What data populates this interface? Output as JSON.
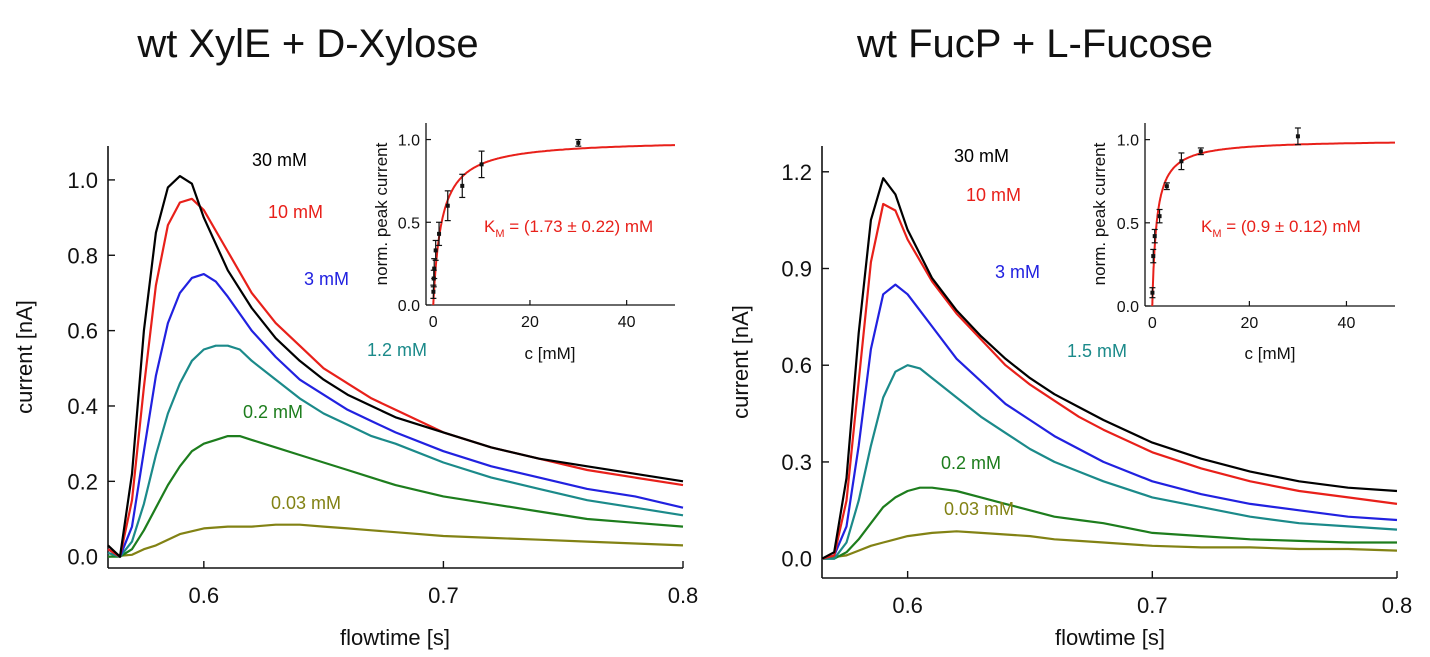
{
  "chart_data": [
    {
      "type": "line",
      "title": "wt XylE + D-Xylose",
      "xlabel": "flowtime [s]",
      "ylabel": "current [nA]",
      "xlim": [
        0.56,
        0.8
      ],
      "ylim": [
        -0.03,
        1.09
      ],
      "xticks": [
        "0.6",
        "0.7",
        "0.8"
      ],
      "yticks": [
        "0.0",
        "0.2",
        "0.4",
        "0.6",
        "0.8",
        "1.0"
      ],
      "series": [
        {
          "name": "30 mM",
          "color": "#000000",
          "x": [
            0.56,
            0.565,
            0.57,
            0.575,
            0.58,
            0.585,
            0.59,
            0.595,
            0.6,
            0.61,
            0.62,
            0.63,
            0.64,
            0.65,
            0.66,
            0.67,
            0.68,
            0.7,
            0.72,
            0.74,
            0.76,
            0.78,
            0.8
          ],
          "y": [
            0.03,
            0.0,
            0.22,
            0.6,
            0.86,
            0.98,
            1.01,
            0.99,
            0.9,
            0.76,
            0.66,
            0.58,
            0.52,
            0.47,
            0.43,
            0.4,
            0.37,
            0.33,
            0.29,
            0.26,
            0.24,
            0.22,
            0.2
          ]
        },
        {
          "name": "10 mM",
          "color": "#e8201a",
          "x": [
            0.56,
            0.565,
            0.57,
            0.575,
            0.58,
            0.585,
            0.59,
            0.595,
            0.6,
            0.61,
            0.62,
            0.63,
            0.64,
            0.65,
            0.66,
            0.67,
            0.68,
            0.7,
            0.72,
            0.74,
            0.76,
            0.78,
            0.8
          ],
          "y": [
            0.02,
            0.0,
            0.15,
            0.45,
            0.72,
            0.88,
            0.94,
            0.95,
            0.92,
            0.81,
            0.7,
            0.62,
            0.56,
            0.5,
            0.46,
            0.42,
            0.39,
            0.33,
            0.29,
            0.26,
            0.23,
            0.21,
            0.19
          ]
        },
        {
          "name": "3 mM",
          "color": "#2121e0",
          "x": [
            0.56,
            0.565,
            0.57,
            0.575,
            0.58,
            0.585,
            0.59,
            0.595,
            0.6,
            0.605,
            0.61,
            0.62,
            0.63,
            0.64,
            0.65,
            0.66,
            0.67,
            0.68,
            0.7,
            0.72,
            0.74,
            0.76,
            0.78,
            0.8
          ],
          "y": [
            0.02,
            0.0,
            0.08,
            0.28,
            0.48,
            0.62,
            0.7,
            0.74,
            0.75,
            0.73,
            0.69,
            0.6,
            0.53,
            0.47,
            0.43,
            0.39,
            0.36,
            0.33,
            0.28,
            0.24,
            0.21,
            0.18,
            0.16,
            0.13
          ]
        },
        {
          "name": "1.2 mM",
          "color": "#1b8a8a",
          "x": [
            0.56,
            0.565,
            0.57,
            0.575,
            0.58,
            0.585,
            0.59,
            0.595,
            0.6,
            0.605,
            0.61,
            0.615,
            0.62,
            0.63,
            0.64,
            0.65,
            0.66,
            0.67,
            0.68,
            0.7,
            0.72,
            0.74,
            0.76,
            0.78,
            0.8
          ],
          "y": [
            0.01,
            0.0,
            0.04,
            0.14,
            0.27,
            0.38,
            0.46,
            0.52,
            0.55,
            0.56,
            0.56,
            0.55,
            0.52,
            0.47,
            0.42,
            0.38,
            0.35,
            0.32,
            0.3,
            0.25,
            0.21,
            0.18,
            0.15,
            0.13,
            0.11
          ]
        },
        {
          "name": "0.2 mM",
          "color": "#1d7d1d",
          "x": [
            0.56,
            0.565,
            0.57,
            0.575,
            0.58,
            0.585,
            0.59,
            0.595,
            0.6,
            0.605,
            0.61,
            0.615,
            0.62,
            0.63,
            0.64,
            0.65,
            0.66,
            0.67,
            0.68,
            0.7,
            0.72,
            0.74,
            0.76,
            0.78,
            0.8
          ],
          "y": [
            0.0,
            0.0,
            0.02,
            0.07,
            0.13,
            0.19,
            0.24,
            0.28,
            0.3,
            0.31,
            0.32,
            0.32,
            0.31,
            0.29,
            0.27,
            0.25,
            0.23,
            0.21,
            0.19,
            0.16,
            0.14,
            0.12,
            0.1,
            0.09,
            0.08
          ]
        },
        {
          "name": "0.03 mM",
          "color": "#828214",
          "x": [
            0.56,
            0.57,
            0.575,
            0.58,
            0.585,
            0.59,
            0.6,
            0.61,
            0.62,
            0.63,
            0.64,
            0.65,
            0.66,
            0.67,
            0.68,
            0.7,
            0.72,
            0.74,
            0.76,
            0.78,
            0.8
          ],
          "y": [
            0.0,
            0.005,
            0.02,
            0.03,
            0.045,
            0.06,
            0.075,
            0.08,
            0.08,
            0.085,
            0.085,
            0.08,
            0.075,
            0.07,
            0.065,
            0.055,
            0.05,
            0.045,
            0.04,
            0.035,
            0.03
          ]
        }
      ],
      "inset": {
        "xlabel": "c [mM]",
        "ylabel": "norm. peak current",
        "xlim": [
          -1.5,
          50
        ],
        "ylim": [
          0,
          1.1
        ],
        "xticks": [
          "0",
          "20",
          "40"
        ],
        "yticks": [
          "0.0",
          "0.5",
          "1.0"
        ],
        "points": {
          "x": [
            0.03,
            0.1,
            0.2,
            0.5,
            1.2,
            3,
            6,
            10,
            30
          ],
          "y": [
            0.08,
            0.16,
            0.22,
            0.33,
            0.43,
            0.6,
            0.72,
            0.85,
            0.98
          ],
          "err": [
            0.04,
            0.05,
            0.06,
            0.06,
            0.07,
            0.09,
            0.07,
            0.08,
            0.02
          ]
        },
        "fit": {
          "model": "michaelis-menten",
          "km": 1.73,
          "vmax": 1.0,
          "color": "#e8201a"
        },
        "annotation": "K_M = (1.73 ± 0.22) mM"
      }
    },
    {
      "type": "line",
      "title": "wt FucP + L-Fucose",
      "xlabel": "flowtime [s]",
      "ylabel": "current [nA]",
      "xlim": [
        0.565,
        0.8
      ],
      "ylim": [
        -0.06,
        1.28
      ],
      "xticks": [
        "0.6",
        "0.7",
        "0.8"
      ],
      "yticks": [
        "0.0",
        "0.3",
        "0.6",
        "0.9",
        "1.2"
      ],
      "series": [
        {
          "name": "30 mM",
          "color": "#000000",
          "x": [
            0.565,
            0.57,
            0.575,
            0.58,
            0.585,
            0.59,
            0.595,
            0.6,
            0.61,
            0.62,
            0.63,
            0.64,
            0.65,
            0.66,
            0.67,
            0.68,
            0.7,
            0.72,
            0.74,
            0.76,
            0.78,
            0.8
          ],
          "y": [
            0.0,
            0.02,
            0.25,
            0.7,
            1.05,
            1.18,
            1.13,
            1.02,
            0.87,
            0.77,
            0.69,
            0.62,
            0.56,
            0.51,
            0.47,
            0.43,
            0.36,
            0.31,
            0.27,
            0.24,
            0.22,
            0.21
          ]
        },
        {
          "name": "10 mM",
          "color": "#e8201a",
          "x": [
            0.565,
            0.57,
            0.575,
            0.58,
            0.585,
            0.59,
            0.595,
            0.6,
            0.61,
            0.62,
            0.63,
            0.64,
            0.65,
            0.66,
            0.67,
            0.68,
            0.7,
            0.72,
            0.74,
            0.76,
            0.78,
            0.8
          ],
          "y": [
            0.0,
            0.01,
            0.18,
            0.55,
            0.92,
            1.1,
            1.08,
            0.99,
            0.86,
            0.76,
            0.68,
            0.6,
            0.54,
            0.49,
            0.44,
            0.4,
            0.33,
            0.28,
            0.24,
            0.21,
            0.19,
            0.17
          ]
        },
        {
          "name": "3 mM",
          "color": "#2121e0",
          "x": [
            0.565,
            0.57,
            0.575,
            0.58,
            0.585,
            0.59,
            0.595,
            0.6,
            0.605,
            0.61,
            0.62,
            0.63,
            0.64,
            0.65,
            0.66,
            0.67,
            0.68,
            0.7,
            0.72,
            0.74,
            0.76,
            0.78,
            0.8
          ],
          "y": [
            0.0,
            0.01,
            0.1,
            0.35,
            0.65,
            0.82,
            0.85,
            0.82,
            0.77,
            0.72,
            0.62,
            0.55,
            0.48,
            0.43,
            0.38,
            0.34,
            0.3,
            0.24,
            0.2,
            0.17,
            0.15,
            0.13,
            0.12
          ]
        },
        {
          "name": "1.5 mM",
          "color": "#1b8a8a",
          "x": [
            0.565,
            0.57,
            0.575,
            0.58,
            0.585,
            0.59,
            0.595,
            0.6,
            0.605,
            0.61,
            0.62,
            0.63,
            0.64,
            0.65,
            0.66,
            0.67,
            0.68,
            0.7,
            0.72,
            0.74,
            0.76,
            0.78,
            0.8
          ],
          "y": [
            0.0,
            0.0,
            0.05,
            0.18,
            0.35,
            0.5,
            0.58,
            0.6,
            0.59,
            0.56,
            0.5,
            0.44,
            0.39,
            0.34,
            0.3,
            0.27,
            0.24,
            0.19,
            0.16,
            0.13,
            0.11,
            0.1,
            0.09
          ]
        },
        {
          "name": "0.2 mM",
          "color": "#1d7d1d",
          "x": [
            0.565,
            0.57,
            0.575,
            0.58,
            0.585,
            0.59,
            0.595,
            0.6,
            0.605,
            0.61,
            0.62,
            0.63,
            0.64,
            0.65,
            0.66,
            0.67,
            0.68,
            0.7,
            0.72,
            0.74,
            0.76,
            0.78,
            0.8
          ],
          "y": [
            0.0,
            0.0,
            0.02,
            0.06,
            0.11,
            0.16,
            0.19,
            0.21,
            0.22,
            0.22,
            0.21,
            0.19,
            0.17,
            0.15,
            0.13,
            0.12,
            0.11,
            0.08,
            0.07,
            0.06,
            0.055,
            0.05,
            0.05
          ]
        },
        {
          "name": "0.03 mM",
          "color": "#828214",
          "x": [
            0.565,
            0.575,
            0.58,
            0.585,
            0.59,
            0.6,
            0.61,
            0.62,
            0.63,
            0.64,
            0.65,
            0.66,
            0.67,
            0.68,
            0.7,
            0.72,
            0.74,
            0.76,
            0.78,
            0.8
          ],
          "y": [
            0.0,
            0.01,
            0.025,
            0.04,
            0.05,
            0.07,
            0.08,
            0.085,
            0.08,
            0.075,
            0.07,
            0.06,
            0.055,
            0.05,
            0.04,
            0.035,
            0.035,
            0.03,
            0.03,
            0.025
          ]
        }
      ],
      "inset": {
        "xlabel": "c [mM]",
        "ylabel": "norm. peak current",
        "xlim": [
          -1.5,
          50
        ],
        "ylim": [
          0,
          1.1
        ],
        "xticks": [
          "0",
          "20",
          "40"
        ],
        "yticks": [
          "0.0",
          "0.5",
          "1.0"
        ],
        "points": {
          "x": [
            0.03,
            0.2,
            0.5,
            1.5,
            3,
            6,
            10,
            30
          ],
          "y": [
            0.08,
            0.3,
            0.42,
            0.54,
            0.72,
            0.87,
            0.93,
            1.02
          ],
          "err": [
            0.03,
            0.04,
            0.04,
            0.04,
            0.02,
            0.05,
            0.02,
            0.05
          ]
        },
        "fit": {
          "model": "michaelis-menten",
          "km": 0.9,
          "vmax": 1.0,
          "color": "#e8201a"
        },
        "annotation": "K_M = (0.9 ± 0.12) mM"
      }
    }
  ]
}
